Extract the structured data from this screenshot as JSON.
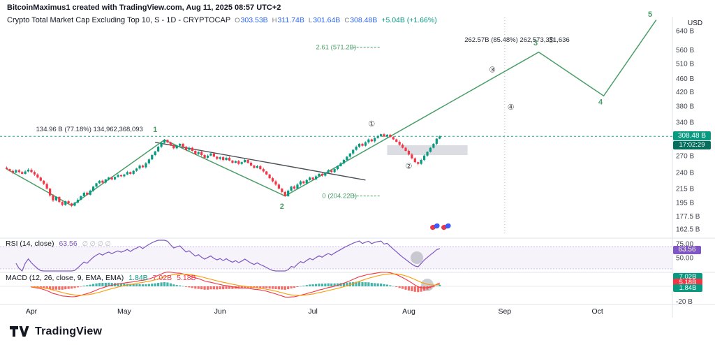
{
  "header": {
    "credit": "BitcoinMaximus1 created with TradingView.com, Aug 11, 2025 08:57 UTC+2"
  },
  "legend": {
    "title": "Crypto Total Market Cap Excluding Top 10, S - 1D - CRYPTOCAP",
    "ohlc": [
      {
        "key": "O",
        "value": "303.53B"
      },
      {
        "key": "H",
        "value": "311.74B"
      },
      {
        "key": "L",
        "value": "301.64B"
      },
      {
        "key": "C",
        "value": "308.48B"
      }
    ],
    "change": "+5.04B (+1.66%)"
  },
  "price_axis": {
    "unit": "USD",
    "ticks": [
      {
        "label": "640 B",
        "value": 640
      },
      {
        "label": "560 B",
        "value": 560
      },
      {
        "label": "510 B",
        "value": 510
      },
      {
        "label": "460 B",
        "value": 460
      },
      {
        "label": "420 B",
        "value": 420
      },
      {
        "label": "380 B",
        "value": 380
      },
      {
        "label": "340 B",
        "value": 340
      },
      {
        "label": "270 B",
        "value": 270
      },
      {
        "label": "240 B",
        "value": 240
      },
      {
        "label": "215 B",
        "value": 215
      },
      {
        "label": "195 B",
        "value": 195
      },
      {
        "label": "177.5 B",
        "value": 177.5
      },
      {
        "label": "162.5 B",
        "value": 162.5
      }
    ],
    "current": {
      "label": "308.48 B",
      "value": 308.48,
      "countdown": "17:02:29"
    }
  },
  "rsi_panel": {
    "title": "RSI (14, close)",
    "value": "63.56",
    "hidden_values": "∅ ∅ ∅ ∅",
    "ticks": [
      {
        "label": "75.00",
        "value": 75
      },
      {
        "label": "50.00",
        "value": 50
      }
    ],
    "badge": "63.56",
    "line_color": "#7e57c2"
  },
  "macd_panel": {
    "title": "MACD (12, 26, close, 9, EMA, EMA)",
    "values": [
      {
        "label": "1.84B",
        "color": "#089981"
      },
      {
        "label": "7.02B",
        "color": "#f23645"
      },
      {
        "label": "5.18B",
        "color": "#f23645"
      }
    ],
    "badges": [
      {
        "label": "7.02B",
        "color": "#089981"
      },
      {
        "label": "5.18B",
        "color": "#f23645"
      },
      {
        "label": "1.84B",
        "color": "#089981"
      }
    ],
    "axis_label": "-20 B"
  },
  "time_axis": {
    "labels": [
      "Apr",
      "May",
      "Jun",
      "Jul",
      "Aug",
      "Sep",
      "Oct"
    ]
  },
  "footer": {
    "brand": "TradingView"
  },
  "colors": {
    "up": "#089981",
    "down": "#f23645",
    "wave": "#4a9e68",
    "accent_blue": "#2962ff",
    "trendline": "#4a4f57"
  },
  "chart_data": {
    "type": "candlestick",
    "title": "Crypto Total Market Cap Excluding Top 10",
    "exchange": "CRYPTOCAP",
    "interval": "1D",
    "unit": "USD billions",
    "y_scale": "log",
    "y_ticks": [
      640,
      560,
      510,
      460,
      420,
      380,
      340,
      270,
      240,
      215,
      195,
      177.5,
      162.5
    ],
    "current_price": 308.48,
    "first_candle_day_offset_from_apr1": -8,
    "closes_billions": [
      246,
      243,
      240,
      244,
      241,
      238,
      242,
      245,
      241,
      237,
      232,
      227,
      222,
      215,
      205,
      198,
      203,
      196,
      192,
      197,
      194,
      191,
      195,
      199,
      204,
      209,
      206,
      212,
      218,
      223,
      227,
      224,
      229,
      232,
      229,
      233,
      236,
      234,
      237,
      241,
      238,
      243,
      247,
      252,
      249,
      256,
      263,
      271,
      278,
      287,
      295,
      301,
      296,
      290,
      284,
      289,
      293,
      287,
      281,
      285,
      279,
      273,
      277,
      271,
      266,
      270,
      274,
      268,
      264,
      267,
      262,
      266,
      261,
      257,
      260,
      255,
      258,
      262,
      257,
      252,
      248,
      251,
      246,
      242,
      237,
      231,
      226,
      221,
      215,
      210,
      204,
      212,
      218,
      215,
      221,
      226,
      223,
      228,
      232,
      229,
      234,
      238,
      235,
      240,
      244,
      241,
      246,
      251,
      256,
      262,
      268,
      274,
      281,
      287,
      293,
      289,
      296,
      302,
      298,
      305,
      309,
      313,
      308,
      312,
      307,
      302,
      297,
      291,
      285,
      279,
      272,
      265,
      258,
      255,
      262,
      270,
      277,
      285,
      293,
      303.5,
      308.48
    ],
    "elliott_wave": {
      "color": "#4a9e68",
      "points": [
        {
          "label": "start",
          "day": -8,
          "price": 246
        },
        {
          "label": "0",
          "day": 13,
          "price": 191
        },
        {
          "label": "1",
          "day": 43,
          "price": 301
        },
        {
          "label": "2",
          "day": 82,
          "price": 204.22
        },
        {
          "label": "3-projected",
          "day": 164,
          "price": 552
        },
        {
          "label": "4-projected",
          "day": 185,
          "price": 408
        },
        {
          "label": "5-projected",
          "day": 202,
          "price": 690
        }
      ],
      "digit_labels": [
        {
          "text": "1",
          "day": 40,
          "price": 318
        },
        {
          "text": "2",
          "day": 81,
          "price": 187
        },
        {
          "text": "3",
          "day": 163,
          "price": 578
        },
        {
          "text": "4",
          "day": 184,
          "price": 385
        },
        {
          "text": "5",
          "day": 200,
          "price": 705
        }
      ],
      "circled_labels": [
        {
          "text": "①",
          "day": 110,
          "price": 330
        },
        {
          "text": "②",
          "day": 122,
          "price": 247
        },
        {
          "text": "③",
          "day": 149,
          "price": 480
        },
        {
          "text": "④",
          "day": 155,
          "price": 371
        },
        {
          "text": "⑤",
          "day": 168,
          "price": 590
        }
      ]
    },
    "fib_annotations": [
      {
        "text": "2.61 (571.2B)",
        "day": 92,
        "price": 571.2,
        "line_from_day": 104,
        "line_to_day": 113
      },
      {
        "text": "0 (204.22B)",
        "day": 94,
        "price": 204.22,
        "line_from_day": 104,
        "line_to_day": 113
      }
    ],
    "notes": [
      {
        "text": "134.96 B (77.18%)  134,962,368,093",
        "day": 1.5,
        "price": 324
      },
      {
        "text": "262.57B (85.48%)  262,573,331,636",
        "day": 140,
        "price": 601
      }
    ],
    "trendline": {
      "from": {
        "day": 40,
        "price": 296
      },
      "to": {
        "day": 108,
        "price": 228
      }
    },
    "highlight_band": {
      "from_day": 115,
      "to_day": 141,
      "price_top": 290,
      "price_bottom": 271
    },
    "vertical_line_day": 153,
    "rsi": {
      "period": 14,
      "current": 63.56
    },
    "macd": {
      "fast": 12,
      "slow": 26,
      "signal": 9,
      "current_macd": 7.02,
      "current_signal": 5.18,
      "current_hist": 1.84
    }
  }
}
